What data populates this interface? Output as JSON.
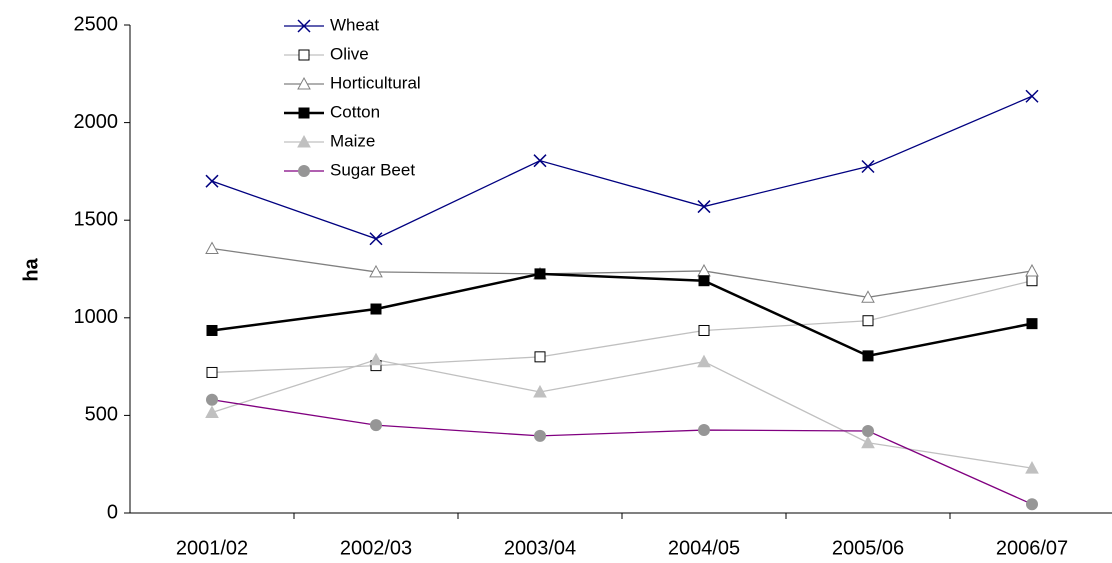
{
  "chart_data": {
    "type": "line",
    "y_label": "ha",
    "categories": [
      "2001/02",
      "2002/03",
      "2003/04",
      "2004/05",
      "2005/06",
      "2006/07"
    ],
    "series": [
      {
        "name": "Wheat",
        "color": "#000080",
        "marker": "x",
        "marker_color": "#000080",
        "values": [
          1700,
          1405,
          1805,
          1570,
          1775,
          2135
        ]
      },
      {
        "name": "Olive",
        "color": "#c0c0c0",
        "marker": "square-open",
        "marker_color": "#000000",
        "values": [
          720,
          755,
          800,
          935,
          985,
          1190
        ]
      },
      {
        "name": "Horticultural",
        "color": "#808080",
        "marker": "triangle-open",
        "marker_color": "#808080",
        "values": [
          1355,
          1235,
          1225,
          1240,
          1105,
          1240
        ]
      },
      {
        "name": "Cotton",
        "color": "#000000",
        "marker": "square",
        "marker_color": "#000000",
        "values": [
          935,
          1045,
          1225,
          1190,
          805,
          970
        ]
      },
      {
        "name": "Maize",
        "color": "#c0c0c0",
        "marker": "triangle",
        "marker_color": "#c0c0c0",
        "values": [
          515,
          785,
          620,
          775,
          360,
          230
        ]
      },
      {
        "name": "Sugar Beet",
        "color": "#800080",
        "marker": "circle",
        "marker_color": "#969696",
        "values": [
          580,
          450,
          395,
          425,
          420,
          45
        ]
      }
    ],
    "ylim": [
      0,
      2500
    ],
    "yticks": [
      0,
      500,
      1000,
      1500,
      2000,
      2500
    ],
    "legend": "top-left"
  }
}
